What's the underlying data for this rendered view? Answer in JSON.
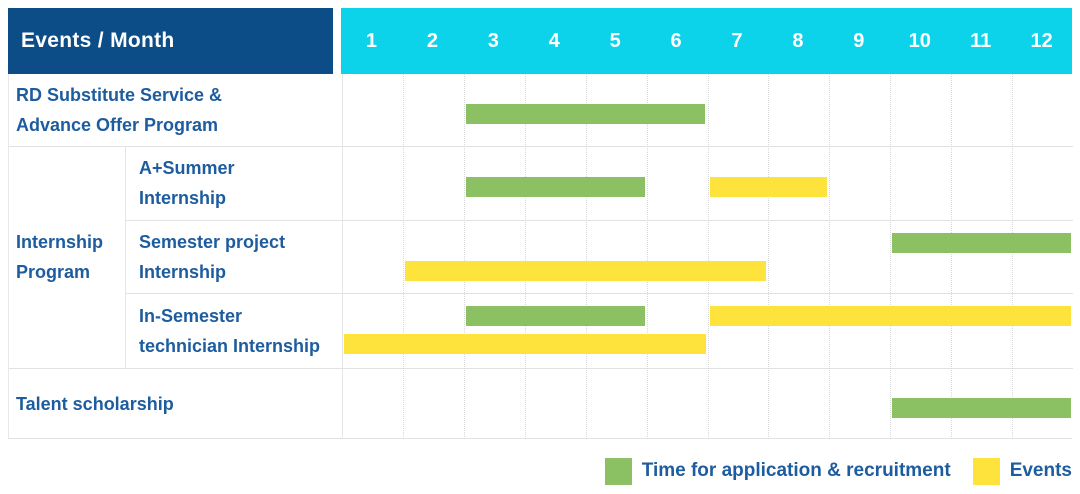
{
  "header": {
    "corner_label": "Events / Month",
    "months": [
      "1",
      "2",
      "3",
      "4",
      "5",
      "6",
      "7",
      "8",
      "9",
      "10",
      "11",
      "12"
    ]
  },
  "table": {
    "row_labels": [
      {
        "line1": "RD Substitute Service &",
        "line2": "Advance Offer Program"
      },
      {
        "line1": "A+Summer",
        "line2": "Internship"
      },
      {
        "line1": "Semester project",
        "line2": "Internship"
      },
      {
        "line1": "In-Semester",
        "line2": "technician Internship"
      },
      {
        "line1": "Talent scholarship",
        "line2": ""
      }
    ],
    "group_label": {
      "line1": "Internship",
      "line2": "Program"
    }
  },
  "legend": {
    "application_label": "Time for application & recruitment",
    "event_label": "Events"
  },
  "colors": {
    "header_navy": "#0d4d87",
    "header_cyan": "#0cd3e9",
    "application_green": "#8cc163",
    "event_yellow": "#ffe33d",
    "label_blue": "#1d5c9e"
  },
  "chart_data": {
    "type": "gantt",
    "x_unit": "month",
    "x_range": [
      1,
      12
    ],
    "x_ticks": [
      "1",
      "2",
      "3",
      "4",
      "5",
      "6",
      "7",
      "8",
      "9",
      "10",
      "11",
      "12"
    ],
    "legend": [
      {
        "key": "application",
        "label": "Time for application & recruitment",
        "color": "#8cc163"
      },
      {
        "key": "event",
        "label": "Events",
        "color": "#ffe33d"
      }
    ],
    "rows": [
      {
        "group": null,
        "label": "RD Substitute Service & Advance Offer Program",
        "bars": [
          {
            "type": "application",
            "start_month": 3,
            "end_month": 6,
            "line": "single"
          }
        ]
      },
      {
        "group": "Internship Program",
        "label": "A+Summer Internship",
        "bars": [
          {
            "type": "application",
            "start_month": 3,
            "end_month": 5,
            "line": "single"
          },
          {
            "type": "event",
            "start_month": 7,
            "end_month": 8,
            "line": "single"
          }
        ]
      },
      {
        "group": "Internship Program",
        "label": "Semester project Internship",
        "bars": [
          {
            "type": "application",
            "start_month": 10,
            "end_month": 12,
            "line": "top"
          },
          {
            "type": "event",
            "start_month": 2,
            "end_month": 7,
            "line": "bottom"
          }
        ]
      },
      {
        "group": "Internship Program",
        "label": "In-Semester technician Internship",
        "bars": [
          {
            "type": "application",
            "start_month": 3,
            "end_month": 5,
            "line": "top"
          },
          {
            "type": "event",
            "start_month": 7,
            "end_month": 12,
            "line": "top"
          },
          {
            "type": "event",
            "start_month": 1,
            "end_month": 6,
            "line": "bottom"
          }
        ]
      },
      {
        "group": null,
        "label": "Talent scholarship",
        "bars": [
          {
            "type": "application",
            "start_month": 10,
            "end_month": 12,
            "line": "single"
          }
        ]
      }
    ]
  }
}
